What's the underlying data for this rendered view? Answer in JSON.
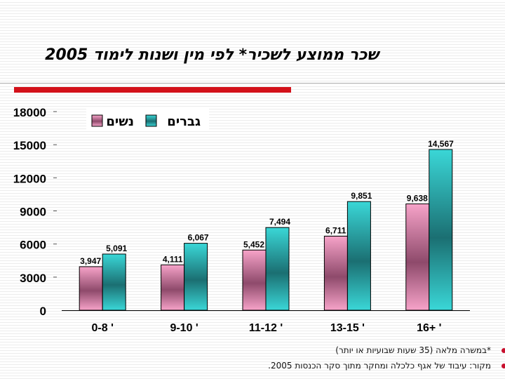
{
  "title": "שכר ממוצע לשכיר* לפי מין ושנות לימוד 2005",
  "notes": [
    "*במשרה מלאה (35 שעות שבועיות או יותר)",
    "מקור: עיבוד של אגף כלכלה ומחקר מתוך סקר הכנסות 2005."
  ],
  "chart_data": {
    "type": "bar",
    "categories": [
      "0-8 '",
      "9-10 '",
      "11-12 '",
      "13-15 '",
      "16+ '"
    ],
    "series": [
      {
        "name": "נשים",
        "values": [
          3947,
          4111,
          5452,
          6711,
          9638
        ],
        "labels": [
          "3,947",
          "4,111",
          "5,452",
          "6,711",
          "9,638"
        ]
      },
      {
        "name": "גברים",
        "values": [
          5091,
          6067,
          7494,
          9851,
          14567
        ],
        "labels": [
          "5,091",
          "6,067",
          "7,494",
          "9,851",
          "14,567"
        ]
      }
    ],
    "ylim": [
      0,
      18000
    ],
    "yticks": [
      0,
      3000,
      6000,
      9000,
      12000,
      15000,
      18000
    ],
    "colors": {
      "women": "#e87fb0",
      "men": "#2ec8c8"
    },
    "legend_position": "top-left"
  }
}
